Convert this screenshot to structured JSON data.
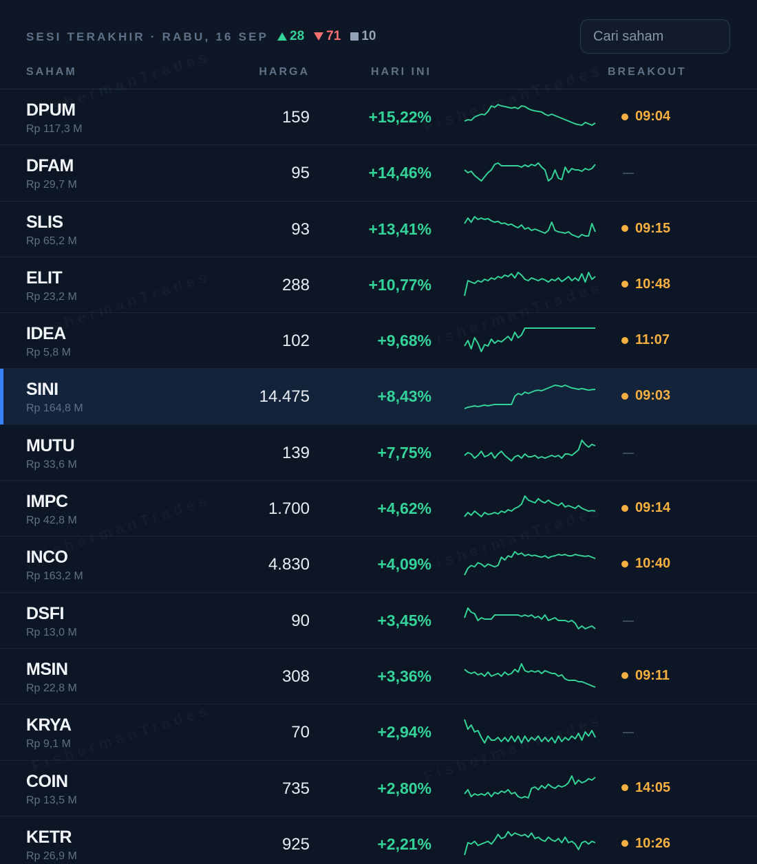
{
  "header": {
    "session_label": "SESI TERAKHIR · RABU, 16 SEP",
    "up_count": "28",
    "down_count": "71",
    "flat_count": "10",
    "search_placeholder": "Cari saham"
  },
  "columns": {
    "saham": "SAHAM",
    "harga": "HARGA",
    "hari_ini": "HARI INI",
    "breakout": "BREAKOUT"
  },
  "watermark": "FishermanTrades",
  "colors": {
    "up": "#34d399",
    "down": "#f87171",
    "flat": "#94a3b8",
    "breakout": "#f5b041",
    "selected_accent": "#3b82f6"
  },
  "rows": [
    {
      "ticker": "DPUM",
      "value": "Rp 117,3 M",
      "price": "159",
      "change": "+15,22%",
      "breakout": "09:04",
      "spark": [
        0.35,
        0.4,
        0.38,
        0.5,
        0.55,
        0.6,
        0.58,
        0.7,
        0.9,
        0.85,
        0.95,
        0.9,
        0.88,
        0.85,
        0.82,
        0.85,
        0.8,
        0.9,
        0.88,
        0.8,
        0.75,
        0.72,
        0.7,
        0.68,
        0.6,
        0.55,
        0.6,
        0.55,
        0.5,
        0.45,
        0.4,
        0.35,
        0.3,
        0.25,
        0.22,
        0.2,
        0.3,
        0.25,
        0.2,
        0.28
      ]
    },
    {
      "ticker": "DFAM",
      "value": "Rp 29,7 M",
      "price": "95",
      "change": "+14,46%",
      "breakout": "",
      "spark": [
        0.6,
        0.5,
        0.55,
        0.4,
        0.3,
        0.2,
        0.35,
        0.5,
        0.6,
        0.8,
        0.85,
        0.75,
        0.75,
        0.75,
        0.75,
        0.75,
        0.75,
        0.7,
        0.78,
        0.72,
        0.8,
        0.75,
        0.85,
        0.7,
        0.6,
        0.2,
        0.3,
        0.6,
        0.3,
        0.25,
        0.7,
        0.5,
        0.65,
        0.6,
        0.6,
        0.55,
        0.65,
        0.6,
        0.65,
        0.8
      ]
    },
    {
      "ticker": "SLIS",
      "value": "Rp 65,2 M",
      "price": "93",
      "change": "+13,41%",
      "breakout": "09:15",
      "spark": [
        0.7,
        0.9,
        0.75,
        0.95,
        0.85,
        0.9,
        0.85,
        0.88,
        0.8,
        0.75,
        0.78,
        0.7,
        0.72,
        0.65,
        0.68,
        0.6,
        0.55,
        0.65,
        0.5,
        0.55,
        0.45,
        0.5,
        0.45,
        0.4,
        0.35,
        0.45,
        0.75,
        0.45,
        0.4,
        0.38,
        0.35,
        0.4,
        0.3,
        0.25,
        0.2,
        0.3,
        0.25,
        0.25,
        0.7,
        0.4
      ]
    },
    {
      "ticker": "ELIT",
      "value": "Rp 23,2 M",
      "price": "288",
      "change": "+10,77%",
      "breakout": "10:48",
      "spark": [
        0.1,
        0.65,
        0.6,
        0.55,
        0.65,
        0.6,
        0.7,
        0.65,
        0.75,
        0.7,
        0.8,
        0.75,
        0.85,
        0.8,
        0.9,
        0.75,
        0.95,
        0.85,
        0.7,
        0.65,
        0.75,
        0.7,
        0.65,
        0.72,
        0.68,
        0.6,
        0.7,
        0.65,
        0.75,
        0.62,
        0.7,
        0.8,
        0.65,
        0.75,
        0.65,
        0.9,
        0.6,
        0.95,
        0.7,
        0.8
      ]
    },
    {
      "ticker": "IDEA",
      "value": "Rp 5,8 M",
      "price": "102",
      "change": "+9,68%",
      "breakout": "11:07",
      "spark": [
        0.3,
        0.5,
        0.2,
        0.6,
        0.4,
        0.1,
        0.35,
        0.3,
        0.55,
        0.4,
        0.5,
        0.45,
        0.55,
        0.65,
        0.5,
        0.8,
        0.6,
        0.7,
        0.95,
        0.95,
        0.95,
        0.95,
        0.95,
        0.95,
        0.95,
        0.95,
        0.95,
        0.95,
        0.95,
        0.95,
        0.95,
        0.95,
        0.95,
        0.95,
        0.95,
        0.95,
        0.95,
        0.95,
        0.95,
        0.95
      ]
    },
    {
      "ticker": "SINI",
      "value": "Rp 164,8 M",
      "price": "14.475",
      "change": "+8,43%",
      "breakout": "09:03",
      "spark": [
        0.05,
        0.1,
        0.12,
        0.15,
        0.12,
        0.15,
        0.18,
        0.15,
        0.18,
        0.2,
        0.2,
        0.2,
        0.2,
        0.2,
        0.2,
        0.5,
        0.6,
        0.55,
        0.65,
        0.6,
        0.65,
        0.7,
        0.72,
        0.7,
        0.75,
        0.8,
        0.85,
        0.9,
        0.88,
        0.85,
        0.9,
        0.85,
        0.8,
        0.78,
        0.75,
        0.78,
        0.75,
        0.72,
        0.74,
        0.75
      ]
    },
    {
      "ticker": "MUTU",
      "value": "Rp 33,6 M",
      "price": "139",
      "change": "+7,75%",
      "breakout": "",
      "spark": [
        0.4,
        0.5,
        0.45,
        0.3,
        0.4,
        0.55,
        0.35,
        0.4,
        0.5,
        0.3,
        0.45,
        0.55,
        0.4,
        0.3,
        0.2,
        0.35,
        0.4,
        0.3,
        0.45,
        0.35,
        0.35,
        0.4,
        0.3,
        0.35,
        0.3,
        0.35,
        0.4,
        0.35,
        0.4,
        0.3,
        0.45,
        0.45,
        0.4,
        0.5,
        0.6,
        0.95,
        0.8,
        0.7,
        0.8,
        0.75
      ]
    },
    {
      "ticker": "IMPC",
      "value": "Rp 42,8 M",
      "price": "1.700",
      "change": "+4,62%",
      "breakout": "09:14",
      "spark": [
        0.2,
        0.35,
        0.25,
        0.4,
        0.3,
        0.2,
        0.35,
        0.28,
        0.3,
        0.35,
        0.3,
        0.4,
        0.35,
        0.45,
        0.4,
        0.5,
        0.55,
        0.65,
        0.95,
        0.8,
        0.75,
        0.7,
        0.85,
        0.75,
        0.7,
        0.8,
        0.7,
        0.65,
        0.6,
        0.7,
        0.55,
        0.6,
        0.55,
        0.5,
        0.6,
        0.5,
        0.45,
        0.4,
        0.42,
        0.4
      ]
    },
    {
      "ticker": "INCO",
      "value": "Rp 163,2 M",
      "price": "4.830",
      "change": "+4,09%",
      "breakout": "10:40",
      "spark": [
        0.1,
        0.35,
        0.45,
        0.4,
        0.55,
        0.5,
        0.4,
        0.5,
        0.45,
        0.4,
        0.45,
        0.75,
        0.65,
        0.8,
        0.75,
        0.95,
        0.85,
        0.9,
        0.8,
        0.85,
        0.8,
        0.82,
        0.78,
        0.75,
        0.8,
        0.72,
        0.78,
        0.8,
        0.85,
        0.82,
        0.85,
        0.8,
        0.8,
        0.85,
        0.82,
        0.8,
        0.78,
        0.8,
        0.75,
        0.7
      ]
    },
    {
      "ticker": "DSFI",
      "value": "Rp 13,0 M",
      "price": "90",
      "change": "+3,45%",
      "breakout": "",
      "spark": [
        0.6,
        0.95,
        0.8,
        0.75,
        0.5,
        0.6,
        0.55,
        0.55,
        0.55,
        0.7,
        0.7,
        0.7,
        0.7,
        0.7,
        0.7,
        0.7,
        0.7,
        0.65,
        0.7,
        0.65,
        0.7,
        0.6,
        0.65,
        0.55,
        0.7,
        0.5,
        0.55,
        0.6,
        0.5,
        0.5,
        0.5,
        0.45,
        0.5,
        0.4,
        0.2,
        0.3,
        0.2,
        0.25,
        0.3,
        0.2
      ]
    },
    {
      "ticker": "MSIN",
      "value": "Rp 22,8 M",
      "price": "308",
      "change": "+3,36%",
      "breakout": "09:11",
      "spark": [
        0.75,
        0.65,
        0.6,
        0.65,
        0.55,
        0.6,
        0.5,
        0.65,
        0.5,
        0.55,
        0.6,
        0.5,
        0.65,
        0.55,
        0.6,
        0.75,
        0.65,
        0.95,
        0.7,
        0.65,
        0.7,
        0.65,
        0.7,
        0.6,
        0.7,
        0.65,
        0.6,
        0.6,
        0.5,
        0.55,
        0.4,
        0.35,
        0.35,
        0.35,
        0.3,
        0.3,
        0.25,
        0.2,
        0.15,
        0.1
      ]
    },
    {
      "ticker": "KRYA",
      "value": "Rp 9,1 M",
      "price": "70",
      "change": "+2,94%",
      "breakout": "",
      "spark": [
        0.95,
        0.6,
        0.75,
        0.5,
        0.55,
        0.3,
        0.1,
        0.35,
        0.2,
        0.2,
        0.3,
        0.15,
        0.3,
        0.15,
        0.35,
        0.15,
        0.35,
        0.1,
        0.35,
        0.15,
        0.3,
        0.2,
        0.35,
        0.15,
        0.3,
        0.15,
        0.3,
        0.1,
        0.35,
        0.15,
        0.3,
        0.2,
        0.35,
        0.25,
        0.45,
        0.2,
        0.5,
        0.35,
        0.55,
        0.3
      ]
    },
    {
      "ticker": "COIN",
      "value": "Rp 13,5 M",
      "price": "735",
      "change": "+2,80%",
      "breakout": "14:05",
      "spark": [
        0.3,
        0.45,
        0.2,
        0.3,
        0.25,
        0.3,
        0.25,
        0.35,
        0.2,
        0.35,
        0.3,
        0.4,
        0.35,
        0.45,
        0.3,
        0.35,
        0.2,
        0.15,
        0.2,
        0.15,
        0.5,
        0.55,
        0.45,
        0.6,
        0.5,
        0.65,
        0.55,
        0.5,
        0.6,
        0.55,
        0.6,
        0.7,
        0.95,
        0.65,
        0.8,
        0.7,
        0.75,
        0.85,
        0.8,
        0.9
      ]
    },
    {
      "ticker": "KETR",
      "value": "Rp 26,9 M",
      "price": "925",
      "change": "+2,21%",
      "breakout": "10:26",
      "spark": [
        0.1,
        0.55,
        0.5,
        0.6,
        0.45,
        0.5,
        0.55,
        0.6,
        0.5,
        0.65,
        0.85,
        0.7,
        0.75,
        0.95,
        0.8,
        0.9,
        0.85,
        0.8,
        0.85,
        0.75,
        0.9,
        0.7,
        0.75,
        0.65,
        0.6,
        0.75,
        0.65,
        0.6,
        0.7,
        0.55,
        0.75,
        0.55,
        0.6,
        0.5,
        0.3,
        0.55,
        0.6,
        0.5,
        0.6,
        0.55
      ]
    }
  ]
}
